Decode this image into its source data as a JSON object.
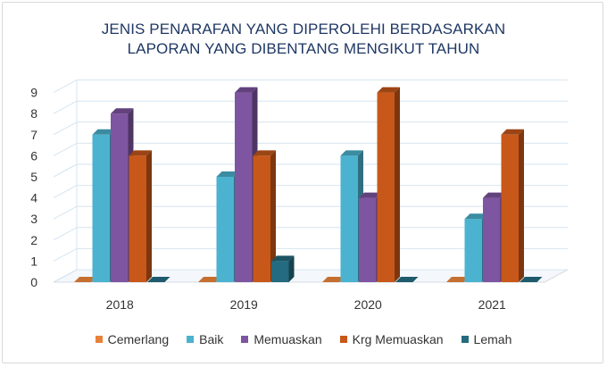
{
  "chart_data": {
    "type": "bar",
    "title_lines": [
      "JENIS PENARAFAN YANG DIPEROLEHI BERDASARKAN",
      "LAPORAN YANG DIBENTANG MENGIKUT TAHUN"
    ],
    "categories": [
      "2018",
      "2019",
      "2020",
      "2021"
    ],
    "series": [
      {
        "name": "Cemerlang",
        "color": "#e8823a",
        "values": [
          0,
          0,
          0,
          0
        ]
      },
      {
        "name": "Baik",
        "color": "#4bb3cf",
        "values": [
          7,
          5,
          6,
          3
        ]
      },
      {
        "name": "Memuaskan",
        "color": "#7e55a0",
        "values": [
          8,
          9,
          4,
          4
        ]
      },
      {
        "name": "Krg Memuaskan",
        "color": "#c8581a",
        "values": [
          6,
          6,
          9,
          7
        ]
      },
      {
        "name": "Lemah",
        "color": "#246b7f",
        "values": [
          0,
          1,
          0,
          0
        ]
      }
    ],
    "y_ticks": [
      "0",
      "1",
      "2",
      "3",
      "4",
      "5",
      "6",
      "7",
      "8",
      "9"
    ],
    "ylim": [
      0,
      9
    ],
    "grid": true,
    "legend_position": "bottom",
    "style": "3d-column"
  }
}
